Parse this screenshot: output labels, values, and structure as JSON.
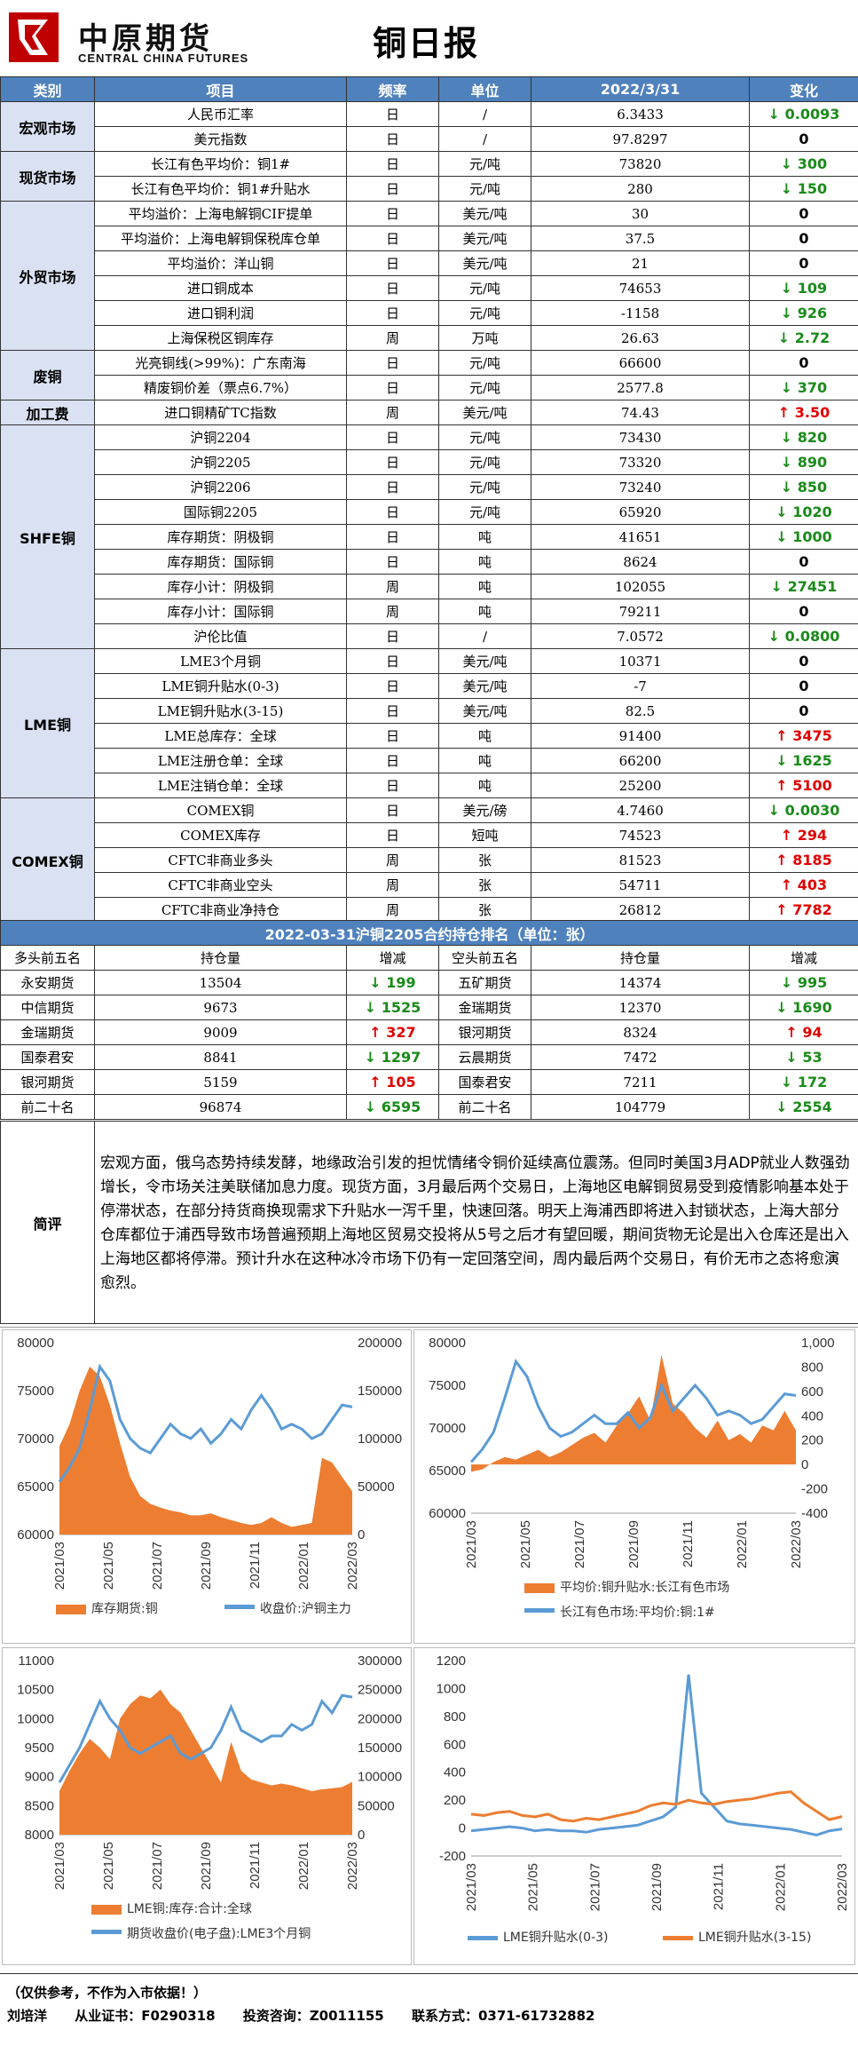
{
  "header": {
    "logo_cn": "中原期货",
    "logo_en": "CENTRAL CHINA FUTURES",
    "title": "铜日报"
  },
  "table": {
    "columns": [
      "类别",
      "项目",
      "频率",
      "单位",
      "2022/3/31",
      "变化"
    ],
    "groups": [
      {
        "category": "宏观市场",
        "rows": [
          {
            "item": "人民币汇率",
            "freq": "日",
            "unit": "/",
            "value": "6.3433",
            "change": "0.0093",
            "dir": "down"
          },
          {
            "item": "美元指数",
            "freq": "日",
            "unit": "/",
            "value": "97.8297",
            "change": "0",
            "dir": "flat"
          }
        ]
      },
      {
        "category": "现货市场",
        "rows": [
          {
            "item": "长江有色平均价：铜1#",
            "freq": "日",
            "unit": "元/吨",
            "value": "73820",
            "change": "300",
            "dir": "down"
          },
          {
            "item": "长江有色平均价：铜1#升贴水",
            "freq": "日",
            "unit": "元/吨",
            "value": "280",
            "change": "150",
            "dir": "down"
          }
        ]
      },
      {
        "category": "外贸市场",
        "rows": [
          {
            "item": "平均溢价：上海电解铜CIF提单",
            "freq": "日",
            "unit": "美元/吨",
            "value": "30",
            "change": "0",
            "dir": "flat"
          },
          {
            "item": "平均溢价：上海电解铜保税库仓单",
            "freq": "日",
            "unit": "美元/吨",
            "value": "37.5",
            "change": "0",
            "dir": "flat"
          },
          {
            "item": "平均溢价：洋山铜",
            "freq": "日",
            "unit": "美元/吨",
            "value": "21",
            "change": "0",
            "dir": "flat"
          },
          {
            "item": "进口铜成本",
            "freq": "日",
            "unit": "元/吨",
            "value": "74653",
            "change": "109",
            "dir": "down"
          },
          {
            "item": "进口铜利润",
            "freq": "日",
            "unit": "元/吨",
            "value": "-1158",
            "change": "926",
            "dir": "down"
          },
          {
            "item": "上海保税区铜库存",
            "freq": "周",
            "unit": "万吨",
            "value": "26.63",
            "change": "2.72",
            "dir": "down"
          }
        ]
      },
      {
        "category": "废铜",
        "rows": [
          {
            "item": "光亮铜线(>99%)：广东南海",
            "freq": "日",
            "unit": "元/吨",
            "value": "66600",
            "change": "0",
            "dir": "flat"
          },
          {
            "item": "精废铜价差（票点6.7%）",
            "freq": "日",
            "unit": "元/吨",
            "value": "2577.8",
            "change": "370",
            "dir": "down"
          }
        ]
      },
      {
        "category": "加工费",
        "rows": [
          {
            "item": "进口铜精矿TC指数",
            "freq": "周",
            "unit": "美元/吨",
            "value": "74.43",
            "change": "3.50",
            "dir": "up"
          }
        ]
      },
      {
        "category": "SHFE铜",
        "rows": [
          {
            "item": "沪铜2204",
            "freq": "日",
            "unit": "元/吨",
            "value": "73430",
            "change": "820",
            "dir": "down"
          },
          {
            "item": "沪铜2205",
            "freq": "日",
            "unit": "元/吨",
            "value": "73320",
            "change": "890",
            "dir": "down"
          },
          {
            "item": "沪铜2206",
            "freq": "日",
            "unit": "元/吨",
            "value": "73240",
            "change": "850",
            "dir": "down"
          },
          {
            "item": "国际铜2205",
            "freq": "日",
            "unit": "元/吨",
            "value": "65920",
            "change": "1020",
            "dir": "down"
          },
          {
            "item": "库存期货：阴极铜",
            "freq": "日",
            "unit": "吨",
            "value": "41651",
            "change": "1000",
            "dir": "down"
          },
          {
            "item": "库存期货：国际铜",
            "freq": "日",
            "unit": "吨",
            "value": "8624",
            "change": "0",
            "dir": "flat"
          },
          {
            "item": "库存小计：阴极铜",
            "freq": "周",
            "unit": "吨",
            "value": "102055",
            "change": "27451",
            "dir": "down"
          },
          {
            "item": "库存小计：国际铜",
            "freq": "周",
            "unit": "吨",
            "value": "79211",
            "change": "0",
            "dir": "flat"
          },
          {
            "item": "沪伦比值",
            "freq": "日",
            "unit": "/",
            "value": "7.0572",
            "change": "0.0800",
            "dir": "down"
          }
        ]
      },
      {
        "category": "LME铜",
        "rows": [
          {
            "item": "LME3个月铜",
            "freq": "日",
            "unit": "美元/吨",
            "value": "10371",
            "change": "0",
            "dir": "flat"
          },
          {
            "item": "LME铜升贴水(0-3)",
            "freq": "日",
            "unit": "美元/吨",
            "value": "-7",
            "change": "0",
            "dir": "flat"
          },
          {
            "item": "LME铜升贴水(3-15)",
            "freq": "日",
            "unit": "美元/吨",
            "value": "82.5",
            "change": "0",
            "dir": "flat"
          },
          {
            "item": "LME总库存：全球",
            "freq": "日",
            "unit": "吨",
            "value": "91400",
            "change": "3475",
            "dir": "up"
          },
          {
            "item": "LME注册仓单：全球",
            "freq": "日",
            "unit": "吨",
            "value": "66200",
            "change": "1625",
            "dir": "down"
          },
          {
            "item": "LME注销仓单：全球",
            "freq": "日",
            "unit": "吨",
            "value": "25200",
            "change": "5100",
            "dir": "up"
          }
        ]
      },
      {
        "category": "COMEX铜",
        "rows": [
          {
            "item": "COMEX铜",
            "freq": "日",
            "unit": "美元/磅",
            "value": "4.7460",
            "change": "0.0030",
            "dir": "down"
          },
          {
            "item": "COMEX库存",
            "freq": "日",
            "unit": "短吨",
            "value": "74523",
            "change": "294",
            "dir": "up"
          },
          {
            "item": "CFTC非商业多头",
            "freq": "周",
            "unit": "张",
            "value": "81523",
            "change": "8185",
            "dir": "up"
          },
          {
            "item": "CFTC非商业空头",
            "freq": "周",
            "unit": "张",
            "value": "54711",
            "change": "403",
            "dir": "up"
          },
          {
            "item": "CFTC非商业净持仓",
            "freq": "周",
            "unit": "张",
            "value": "26812",
            "change": "7782",
            "dir": "up"
          }
        ]
      }
    ]
  },
  "ranking": {
    "title": "2022-03-31沪铜2205合约持仓排名（单位：张）",
    "headers": [
      "多头前五名",
      "持仓量",
      "增减",
      "空头前五名",
      "持仓量",
      "增减"
    ],
    "rows": [
      {
        "long_name": "永安期货",
        "long_pos": "13504",
        "long_chg": "199",
        "long_dir": "down",
        "short_name": "五矿期货",
        "short_pos": "14374",
        "short_chg": "995",
        "short_dir": "down"
      },
      {
        "long_name": "中信期货",
        "long_pos": "9673",
        "long_chg": "1525",
        "long_dir": "down",
        "short_name": "金瑞期货",
        "short_pos": "12370",
        "short_chg": "1690",
        "short_dir": "down"
      },
      {
        "long_name": "金瑞期货",
        "long_pos": "9009",
        "long_chg": "327",
        "long_dir": "up",
        "short_name": "银河期货",
        "short_pos": "8324",
        "short_chg": "94",
        "short_dir": "up"
      },
      {
        "long_name": "国泰君安",
        "long_pos": "8841",
        "long_chg": "1297",
        "long_dir": "down",
        "short_name": "云晨期货",
        "short_pos": "7472",
        "short_chg": "53",
        "short_dir": "down"
      },
      {
        "long_name": "银河期货",
        "long_pos": "5159",
        "long_chg": "105",
        "long_dir": "up",
        "short_name": "国泰君安",
        "short_pos": "7211",
        "short_chg": "172",
        "short_dir": "down"
      },
      {
        "long_name": "前二十名",
        "long_pos": "96874",
        "long_chg": "6595",
        "long_dir": "down",
        "short_name": "前二十名",
        "short_pos": "104779",
        "short_chg": "2554",
        "short_dir": "down"
      }
    ]
  },
  "comment": {
    "label": "简评",
    "text": "宏观方面，俄乌态势持续发酵，地缘政治引发的担忧情绪令铜价延续高位震荡。但同时美国3月ADP就业人数强劲增长，令市场关注美联储加息力度。现货方面，3月最后两个交易日，上海地区电解铜贸易受到疫情影响基本处于停滞状态，在部分持货商换现需求下升贴水一泻千里，快速回落。明天上海浦西即将进入封锁状态，上海大部分仓库都位于浦西导致市场普遍预期上海地区贸易交投将从5号之后才有望回暖，期间货物无论是出入仓库还是出入上海地区都将停滞。预计升水在这种冰冷市场下仍有一定回落空间，周内最后两个交易日，有价无市之态将愈演愈烈。"
  },
  "chart_data": [
    {
      "type": "area+line",
      "x_ticks": [
        "2021/03",
        "2021/05",
        "2021/07",
        "2021/09",
        "2021/11",
        "2022/01",
        "2022/03"
      ],
      "ylim_left": [
        60000,
        80000
      ],
      "yticks_left": [
        "80000",
        "75000",
        "70000",
        "65000",
        "60000"
      ],
      "ylim_right": [
        0,
        200000
      ],
      "yticks_right": [
        "200000",
        "150000",
        "100000",
        "50000",
        "0"
      ],
      "series": [
        {
          "name": "库存期货:铜",
          "axis": "right",
          "kind": "area",
          "color": "#ed7d31",
          "values": [
            92000,
            115000,
            150000,
            175000,
            165000,
            135000,
            95000,
            60000,
            40000,
            32000,
            28000,
            25000,
            23000,
            20000,
            20000,
            22000,
            18000,
            15000,
            12000,
            10000,
            12000,
            18000,
            12000,
            8000,
            10000,
            12000,
            80000,
            75000,
            60000,
            45000
          ]
        },
        {
          "name": "收盘价:沪铜主力",
          "axis": "left",
          "kind": "line",
          "color": "#5b9bd5",
          "values": [
            65500,
            67000,
            69000,
            73000,
            77500,
            76000,
            72000,
            70000,
            69000,
            68500,
            70000,
            71500,
            70500,
            70000,
            71000,
            69500,
            70500,
            72000,
            71000,
            73000,
            74500,
            73000,
            71000,
            71500,
            71000,
            70000,
            70500,
            72000,
            73500,
            73300
          ]
        }
      ]
    },
    {
      "type": "area+line",
      "x_ticks": [
        "2021/03",
        "2021/05",
        "2021/07",
        "2021/09",
        "2021/11",
        "2022/01",
        "2022/03"
      ],
      "ylim_left": [
        60000,
        80000
      ],
      "yticks_left": [
        "80000",
        "75000",
        "70000",
        "65000",
        "60000"
      ],
      "ylim_right": [
        -400,
        1000
      ],
      "yticks_right": [
        "1,000",
        "800",
        "600",
        "400",
        "200",
        "0",
        "-200",
        "-400"
      ],
      "series": [
        {
          "name": "平均价:铜升贴水:长江有色市场",
          "axis": "right",
          "kind": "area",
          "color": "#ed7d31",
          "values": [
            -60,
            -40,
            20,
            60,
            40,
            80,
            120,
            60,
            100,
            160,
            220,
            260,
            180,
            320,
            420,
            560,
            360,
            900,
            500,
            420,
            300,
            220,
            360,
            200,
            250,
            180,
            320,
            280,
            440,
            280
          ]
        },
        {
          "name": "长江有色市场:平均价:铜:1#",
          "axis": "left",
          "kind": "line",
          "color": "#5b9bd5",
          "values": [
            66000,
            67500,
            69500,
            73500,
            77800,
            76000,
            72500,
            70000,
            69000,
            69500,
            70500,
            71500,
            70500,
            70500,
            71800,
            70000,
            71200,
            75000,
            72000,
            73500,
            75000,
            73500,
            71500,
            72000,
            71500,
            70500,
            71000,
            72500,
            74000,
            73800
          ]
        }
      ]
    },
    {
      "type": "area+line",
      "x_ticks": [
        "2021/03",
        "2021/05",
        "2021/07",
        "2021/09",
        "2021/11",
        "2022/01",
        "2022/03"
      ],
      "ylim_left": [
        8000,
        11000
      ],
      "yticks_left": [
        "11000",
        "10500",
        "10000",
        "9500",
        "9000",
        "8500",
        "8000"
      ],
      "ylim_right": [
        0,
        300000
      ],
      "yticks_right": [
        "300000",
        "250000",
        "200000",
        "150000",
        "100000",
        "50000",
        "0"
      ],
      "series": [
        {
          "name": "LME铜:库存:合计:全球",
          "axis": "right",
          "kind": "area",
          "color": "#ed7d31",
          "values": [
            75000,
            110000,
            140000,
            165000,
            150000,
            130000,
            200000,
            225000,
            240000,
            235000,
            250000,
            225000,
            210000,
            180000,
            150000,
            120000,
            90000,
            160000,
            110000,
            95000,
            90000,
            85000,
            88000,
            85000,
            80000,
            75000,
            78000,
            80000,
            82000,
            91000
          ]
        },
        {
          "name": "期货收盘价(电子盘):LME3个月铜",
          "axis": "left",
          "kind": "line",
          "color": "#5b9bd5",
          "values": [
            8900,
            9200,
            9500,
            9900,
            10300,
            10000,
            9800,
            9500,
            9400,
            9500,
            9600,
            9700,
            9400,
            9300,
            9400,
            9500,
            9800,
            10200,
            9800,
            9700,
            9600,
            9700,
            9700,
            9900,
            9800,
            9900,
            10300,
            10100,
            10400,
            10371
          ]
        }
      ]
    },
    {
      "type": "line",
      "x_ticks": [
        "2021/03",
        "2021/05",
        "2021/07",
        "2021/09",
        "2021/11",
        "2022/01",
        "2022/03"
      ],
      "ylim": [
        -200,
        1200
      ],
      "yticks": [
        "1200",
        "1000",
        "800",
        "600",
        "400",
        "200",
        "0",
        "-200"
      ],
      "series": [
        {
          "name": "LME铜升贴水(0-3)",
          "color": "#5b9bd5",
          "values": [
            -20,
            -10,
            0,
            10,
            0,
            -20,
            -10,
            -20,
            -20,
            -30,
            -10,
            0,
            10,
            20,
            50,
            80,
            150,
            1100,
            250,
            150,
            50,
            30,
            20,
            10,
            0,
            -10,
            -30,
            -50,
            -20,
            -7
          ]
        },
        {
          "name": "LME铜升贴水(3-15)",
          "color": "#ed7d31",
          "values": [
            100,
            90,
            110,
            120,
            90,
            80,
            100,
            60,
            50,
            70,
            60,
            80,
            100,
            120,
            160,
            180,
            170,
            200,
            180,
            170,
            190,
            200,
            210,
            230,
            250,
            260,
            180,
            120,
            60,
            82.5
          ]
        }
      ]
    }
  ],
  "footer": {
    "disclaimer": "（仅供参考，不作为入市依据！）",
    "analyst": "刘培洋",
    "license": "从业证书：F0290318",
    "consult": "投资咨询：Z0011155",
    "contact": "联系方式：0371-61732882"
  }
}
